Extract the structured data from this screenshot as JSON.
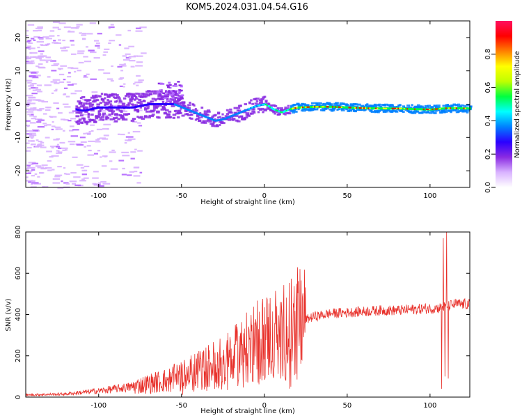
{
  "figure_title": "KOM5.2024.031.04.54.G16",
  "colors": {
    "snr_line": "#e8302a",
    "colormap": [
      "#ffffff",
      "#d9b3ff",
      "#8a2be2",
      "#2a00ff",
      "#0080ff",
      "#00ffff",
      "#00ff40",
      "#c0ff00",
      "#ffff00",
      "#ff8000",
      "#ff0000",
      "#ff1060"
    ]
  },
  "chart_data": [
    {
      "type": "heatmap",
      "title": "KOM5.2024.031.04.54.G16",
      "xlabel": "Height of straight line (km)",
      "ylabel": "Frequency (Hz)",
      "xlim": [
        -144,
        124
      ],
      "ylim": [
        -25,
        25
      ],
      "xticks": [
        -100,
        -50,
        0,
        50,
        100
      ],
      "yticks": [
        -20,
        -10,
        0,
        10,
        20
      ],
      "colorbar": {
        "label": "Normalized spectral amplitude",
        "range": [
          0,
          1
        ],
        "ticks": [
          "0.0",
          "0.2",
          "0.4",
          "0.6",
          "0.8"
        ]
      },
      "ridge": [
        [
          -140,
          0
        ],
        [
          -120,
          -1
        ],
        [
          -110,
          -2
        ],
        [
          -100,
          -1
        ],
        [
          -90,
          -1
        ],
        [
          -80,
          -1
        ],
        [
          -70,
          0
        ],
        [
          -60,
          0
        ],
        [
          -55,
          0
        ],
        [
          -50,
          -1
        ],
        [
          -45,
          -2
        ],
        [
          -40,
          -3
        ],
        [
          -35,
          -4
        ],
        [
          -30,
          -5
        ],
        [
          -25,
          -4.5
        ],
        [
          -20,
          -3.5
        ],
        [
          -15,
          -2.5
        ],
        [
          -10,
          -1.5
        ],
        [
          -5,
          -0.5
        ],
        [
          0,
          0
        ],
        [
          5,
          -1.5
        ],
        [
          10,
          -2.5
        ],
        [
          15,
          -1.5
        ],
        [
          20,
          -1
        ],
        [
          30,
          -0.8
        ],
        [
          40,
          -0.8
        ],
        [
          50,
          -1
        ],
        [
          60,
          -1.2
        ],
        [
          70,
          -1.3
        ],
        [
          80,
          -1.3
        ],
        [
          90,
          -1.5
        ],
        [
          100,
          -1.6
        ],
        [
          110,
          -1.2
        ],
        [
          124,
          -1.3
        ]
      ]
    },
    {
      "type": "line",
      "xlabel": "Height of straight line (km)",
      "ylabel": "SNR (v/v)",
      "xlim": [
        -144,
        124
      ],
      "ylim": [
        0,
        800
      ],
      "xticks": [
        -100,
        -50,
        0,
        50,
        100
      ],
      "yticks": [
        0,
        200,
        400,
        600,
        800
      ],
      "envelope": {
        "x": [
          -144,
          -120,
          -100,
          -80,
          -60,
          -50,
          -40,
          -30,
          -20,
          -10,
          0,
          10,
          15,
          20,
          30,
          40,
          50,
          60,
          70,
          80,
          90,
          100,
          105,
          110,
          115,
          124
        ],
        "y": [
          10,
          15,
          30,
          50,
          80,
          100,
          130,
          160,
          190,
          240,
          290,
          320,
          340,
          360,
          390,
          405,
          410,
          415,
          420,
          420,
          425,
          430,
          430,
          440,
          450,
          450
        ]
      },
      "spikes": [
        {
          "x": 7.5,
          "y": 440
        },
        {
          "x": 10,
          "y": 90
        },
        {
          "x": 13,
          "y": 80
        },
        {
          "x": 104,
          "y": 440
        },
        {
          "x": 107,
          "y": 40
        },
        {
          "x": 108,
          "y": 770
        },
        {
          "x": 109,
          "y": 100
        },
        {
          "x": 110,
          "y": 800
        },
        {
          "x": 111,
          "y": 90
        }
      ]
    }
  ]
}
